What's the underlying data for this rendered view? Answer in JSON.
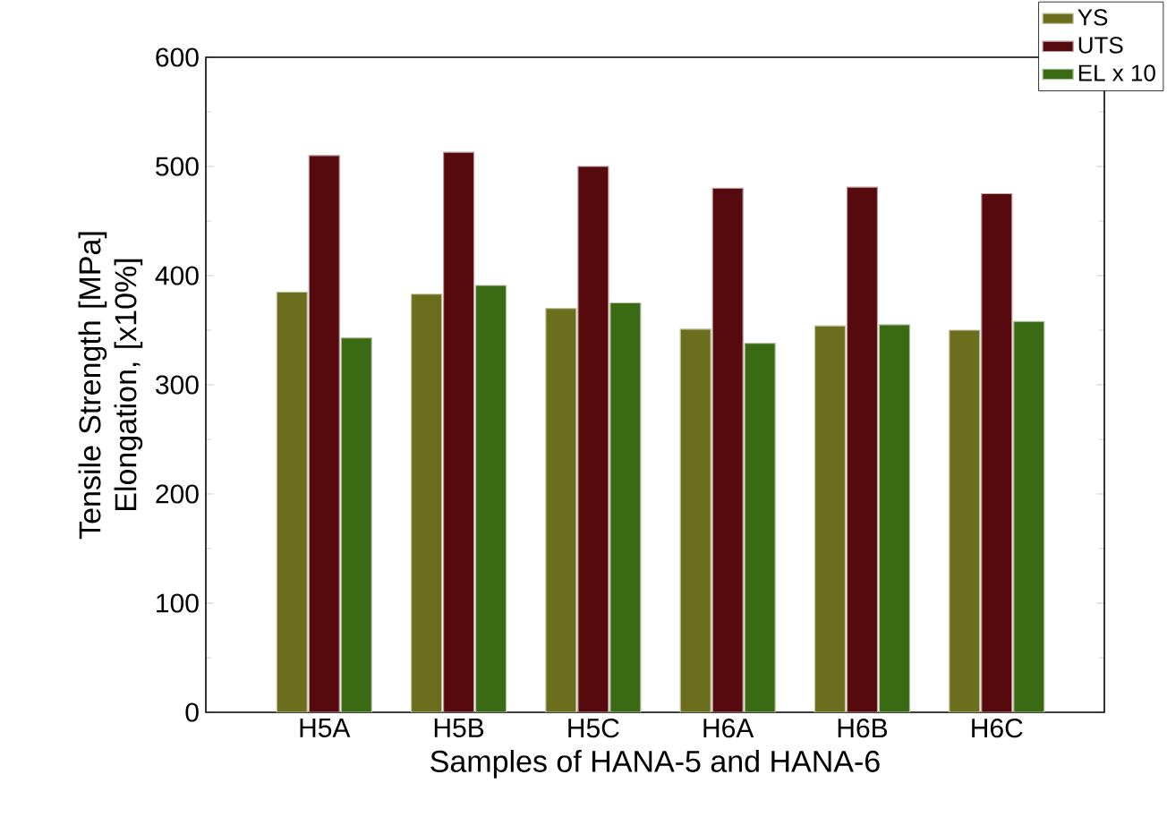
{
  "chart_data": {
    "type": "bar",
    "xlabel": "Samples of HANA-5 and HANA-6",
    "ylabel": "Tensile Strength [MPa] Elongation, [x10%]",
    "categories": [
      "H5A",
      "H5B",
      "H5C",
      "H6A",
      "H6B",
      "H6C"
    ],
    "series": [
      {
        "name": "YS",
        "color": "#6b6e1c",
        "values": [
          385,
          383,
          370,
          351,
          354,
          350
        ]
      },
      {
        "name": "UTS",
        "color": "#560a0e",
        "values": [
          510,
          513,
          500,
          480,
          481,
          475
        ]
      },
      {
        "name": "EL x 10",
        "color": "#3a6a14",
        "values": [
          343,
          391,
          375,
          338,
          355,
          358
        ]
      }
    ],
    "ylim": [
      0,
      600
    ],
    "yticks": [
      0,
      100,
      200,
      300,
      400,
      500,
      600
    ],
    "grid": false,
    "legend": "top right"
  }
}
